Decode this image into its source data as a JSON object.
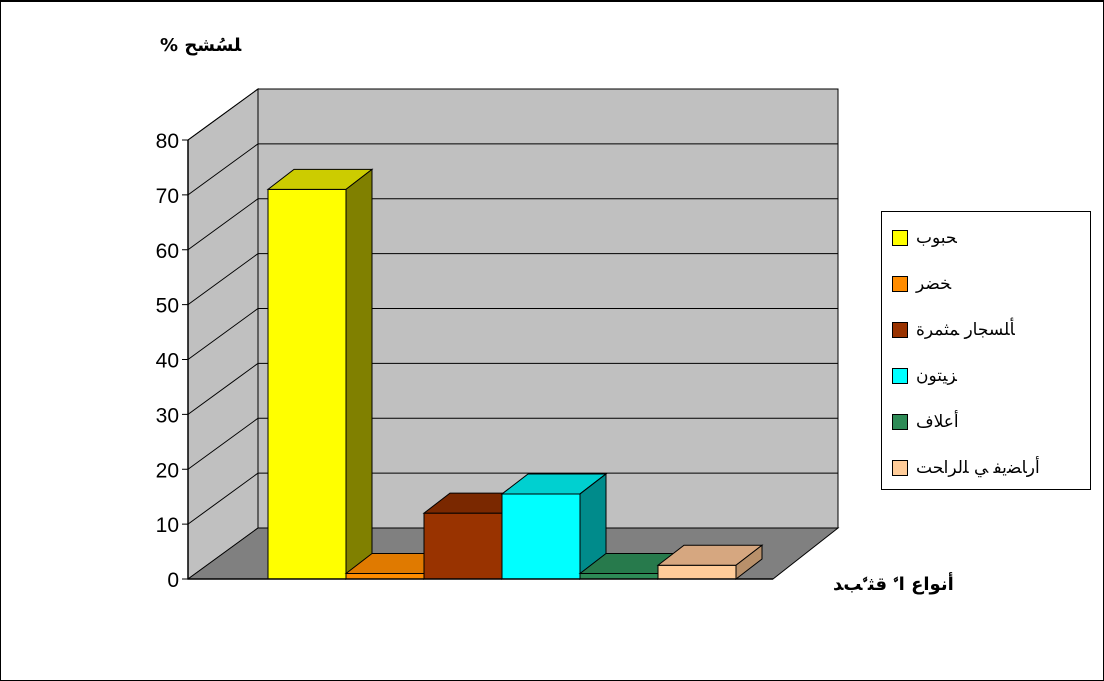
{
  "chart_data": {
    "type": "bar",
    "title": "",
    "ylabel": "% ﻠﺴُﺸﺢ",
    "xlabel": "أنواع اﱠ ﻗﺜﱠﺐﺪ",
    "ylim": [
      0,
      80
    ],
    "yticks": [
      0,
      10,
      20,
      30,
      40,
      50,
      60,
      70,
      80
    ],
    "three_d": true,
    "grid": true,
    "legend_position": "right",
    "categories": [
      "ﺤﺒﻮب",
      "ﺨﻀﺮ",
      "ﺄﻠﺴﺠﺎر ﻤﺜﻤﺮة",
      "ﺰﻴﺘﻮن",
      "أﻋﻼف",
      "أرﺎﻀﻳﻔ ﻲ ﻠﻟﺮاﺤﺖ"
    ],
    "values": [
      71,
      1,
      12,
      15.5,
      1,
      2.5
    ],
    "colors": [
      "#ffff00",
      "#ff8c00",
      "#993300",
      "#00ffff",
      "#2e8b57",
      "#ffcc99"
    ],
    "side_colors": [
      "#808000",
      "#cc7000",
      "#6b2400",
      "#008b8b",
      "#1f5f3c",
      "#b8906a"
    ],
    "top_colors": [
      "#cccc00",
      "#e07a00",
      "#7a2800",
      "#00d0d0",
      "#277a4c",
      "#d6a780"
    ]
  }
}
